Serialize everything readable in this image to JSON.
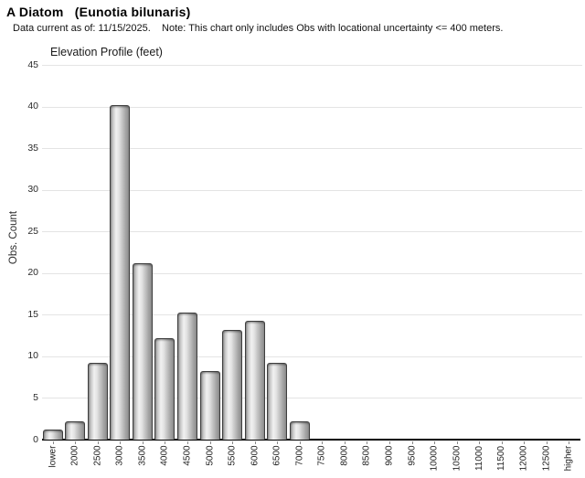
{
  "header": {
    "title": "A Diatom   (Eunotia bilunaris)",
    "subtitle": "Data current as of: 11/15/2025.    Note: This chart only includes Obs with locational uncertainty <= 400 meters."
  },
  "chart_data": {
    "type": "bar",
    "title": "Elevation Profile (feet)",
    "xlabel": "",
    "ylabel": "Obs. Count",
    "categories": [
      "lower",
      "2000",
      "2500",
      "3000",
      "3500",
      "4000",
      "4500",
      "5000",
      "5500",
      "6000",
      "6500",
      "7000",
      "7500",
      "8000",
      "8500",
      "9000",
      "9500",
      "10000",
      "10500",
      "11000",
      "11500",
      "12000",
      "12500",
      "higher"
    ],
    "values": [
      1,
      2,
      9,
      40,
      21,
      12,
      15,
      8,
      13,
      14,
      9,
      2,
      0,
      0,
      0,
      0,
      0,
      0,
      0,
      0,
      0,
      0,
      0,
      0
    ],
    "yticks": [
      0,
      5,
      10,
      15,
      20,
      25,
      30,
      35,
      40,
      45
    ],
    "ylim": [
      0,
      45
    ],
    "grid": true,
    "legend_position": "none",
    "x_tick_label_rotation_deg": -90,
    "colors": {
      "bar_edge": "#8d8d8d",
      "bar_highlight": "#f1f1f1",
      "bar_outline": "#3e3e3e",
      "gridline": "#e4e4e4",
      "axis": "#000000",
      "tick": "#8a8a8a",
      "text": "#222222"
    }
  }
}
